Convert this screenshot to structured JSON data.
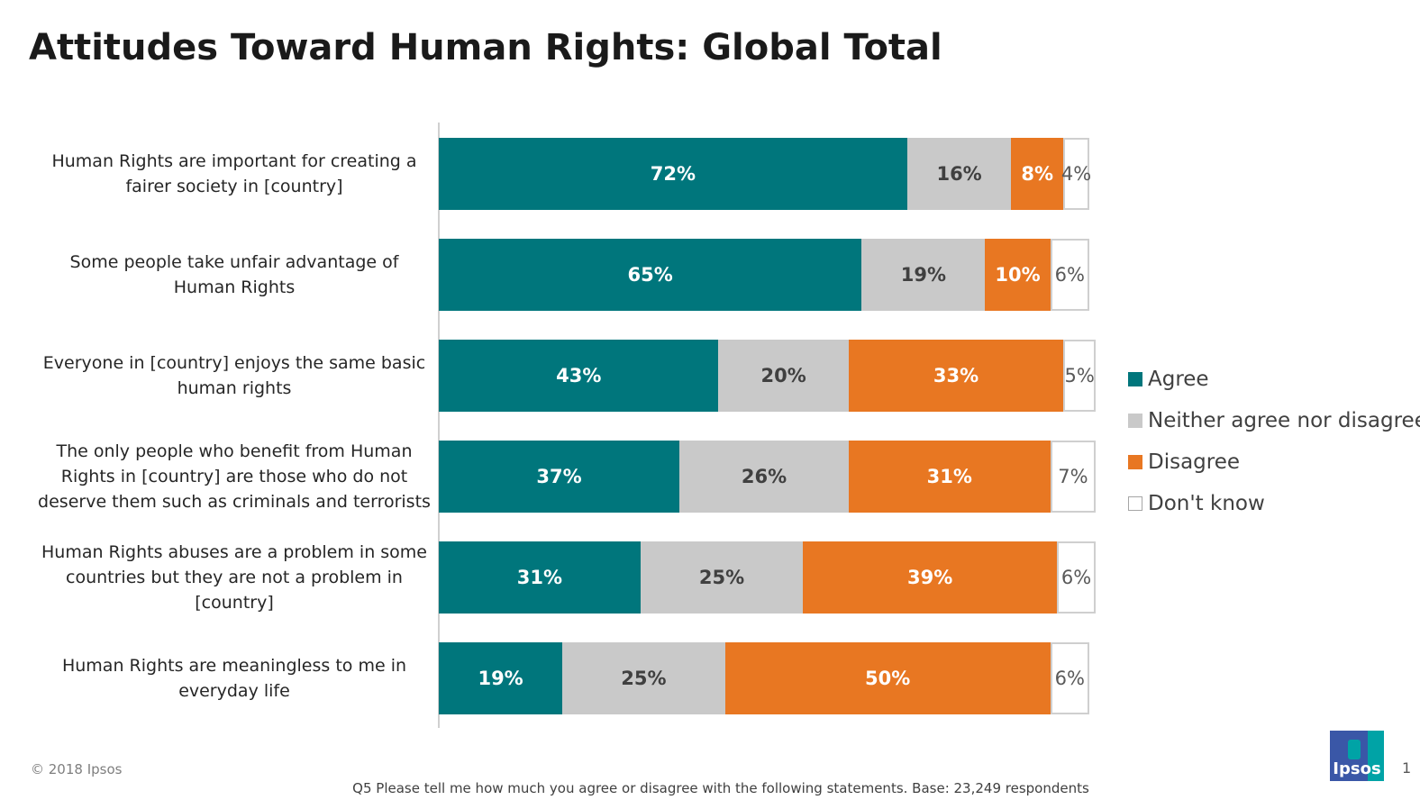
{
  "title": "Attitudes Toward Human Rights: Global Total",
  "chart_data": {
    "type": "bar",
    "orientation": "horizontal",
    "stacked": true,
    "title": "Attitudes Toward Human Rights: Global Total",
    "categories": [
      "Human Rights are important for creating a fairer society in [country]",
      "Some people take unfair advantage of Human Rights",
      "Everyone in [country] enjoys the same basic human rights",
      "The only people who benefit from Human Rights in  [country] are those who do not deserve them such as criminals and terrorists",
      "Human Rights abuses are a problem in some countries but they are not a problem in [country]",
      "Human Rights are meaningless to me in everyday life"
    ],
    "category_lines": [
      [
        "Human Rights are important for creating a",
        "fairer society in [country]"
      ],
      [
        "Some people take unfair advantage of",
        "Human Rights"
      ],
      [
        "Everyone in [country] enjoys the same basic",
        "human rights"
      ],
      [
        "The only people who benefit from Human",
        "Rights in  [country] are those who do not",
        "deserve them such as criminals and terrorists"
      ],
      [
        "Human Rights abuses are a problem in some",
        "countries but they are not a problem in",
        "[country]"
      ],
      [
        "Human Rights are meaningless to me in",
        "everyday life"
      ]
    ],
    "series": [
      {
        "name": "Agree",
        "key": "agree",
        "color": "#00767c",
        "values": [
          72,
          65,
          43,
          37,
          31,
          19
        ]
      },
      {
        "name": "Neither agree nor disagree",
        "key": "neither",
        "color": "#c9c9c9",
        "values": [
          16,
          19,
          20,
          26,
          25,
          25
        ]
      },
      {
        "name": "Disagree",
        "key": "disagree",
        "color": "#e87722",
        "values": [
          8,
          10,
          33,
          31,
          39,
          50
        ]
      },
      {
        "name": "Don't know",
        "key": "dk",
        "color": "#ffffff",
        "values": [
          4,
          6,
          5,
          7,
          6,
          6
        ]
      }
    ],
    "value_suffix": "%",
    "legend_position": "right",
    "grid": false
  },
  "footer": {
    "copyright": "© 2018 Ipsos",
    "note": "Q5 Please tell me how much you agree or disagree with the following statements. Base: 23,249 respondents",
    "logo_text": "Ipsos",
    "page_number": "1"
  }
}
